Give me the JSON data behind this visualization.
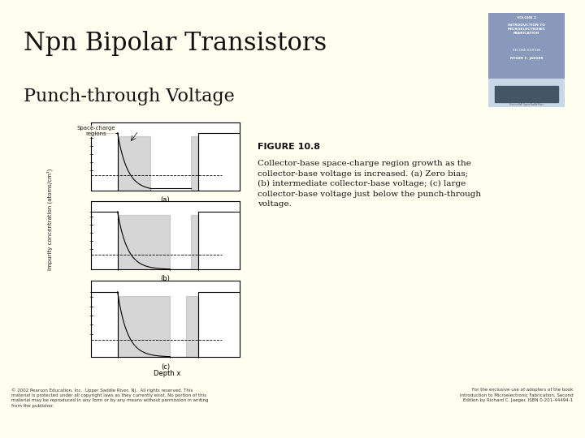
{
  "background_color": "#fffff0",
  "title_line1": "Npn Bipolar Transistors",
  "title_line2": "Punch-through Voltage",
  "separator_color": "#2222aa",
  "footer_left": "© 2002 Pearson Education, Inc.  Upper Saddle River, NJ.  All rights reserved. This\nmaterial is protected under all copyright laws as they currently exist. No portion of this\nmaterial may be reproduced in any form or by any means without permission in writing\nfrom the publisher.",
  "footer_right": "For the exclusive use of adopters of the book\nIntroduction to Microelectronic Fabrication, Second\nEdition by Richard C. Jaeger. ISBN 0-201-44494-1",
  "figure_caption_title": "FIGURE 10.8",
  "figure_caption_body": "Collector-base space-charge region growth as the\ncollector-base voltage is increased. (a) Zero bias;\n(b) intermediate collector-base voltage; (c) large\ncollector-base voltage just below the punch-through\nvoltage.",
  "plot_bg": "#ffffff",
  "plot_gray": "#bbbbbb"
}
